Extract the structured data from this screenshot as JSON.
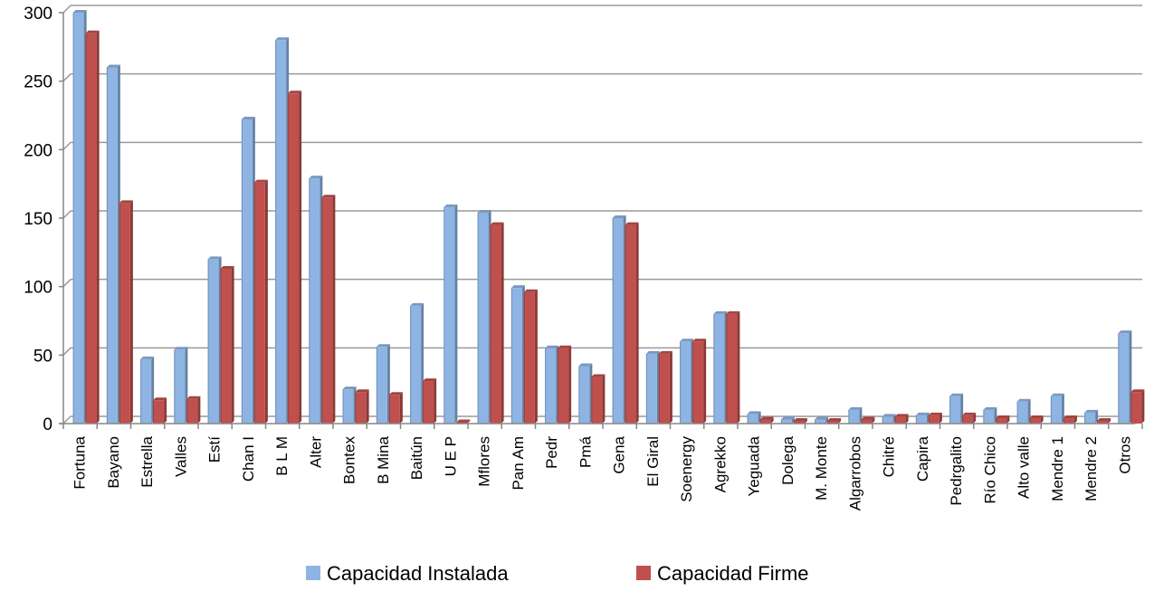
{
  "chart_data": {
    "type": "bar",
    "title": "",
    "xlabel": "",
    "ylabel": "",
    "ylim": [
      0,
      300
    ],
    "yticks": [
      0,
      50,
      100,
      150,
      200,
      250,
      300
    ],
    "grid": true,
    "legend_position": "bottom",
    "categories": [
      "Fortuna",
      "Bayano",
      "Estrella",
      "Valles",
      "Estí",
      "Chan I",
      "B L M",
      "Alter",
      "Bontex",
      "B Mina",
      "Baitún",
      "U E P",
      "Mflores",
      "Pan Am",
      "Pedr",
      "Pmá",
      "Gena",
      "El Giral",
      "Soenergy",
      "Agrekko",
      "Yeguada",
      "Dolega",
      "M. Monte",
      "Algarrobos",
      "Chitré",
      "Capira",
      "Pedrgalito",
      "Río Chico",
      "Alto valle",
      "Mendre 1",
      "Mendre 2",
      "Otros"
    ],
    "series": [
      {
        "name": "Capacidad Instalada",
        "color": "#8EB4E3",
        "values": [
          300,
          260,
          47,
          54,
          120,
          222,
          280,
          179,
          25,
          56,
          86,
          158,
          154,
          99,
          55,
          42,
          150,
          51,
          60,
          80,
          7,
          3,
          3,
          10,
          5,
          6,
          20,
          10,
          16,
          20,
          8,
          66
        ]
      },
      {
        "name": "Capacidad Firme",
        "color": "#C0504D",
        "values": [
          285,
          161,
          17,
          18,
          113,
          176,
          241,
          165,
          23,
          21,
          31,
          1,
          145,
          96,
          55,
          34,
          145,
          51,
          60,
          80,
          3,
          2,
          2,
          3,
          5,
          6,
          6,
          4,
          4,
          4,
          2,
          23
        ]
      }
    ]
  }
}
